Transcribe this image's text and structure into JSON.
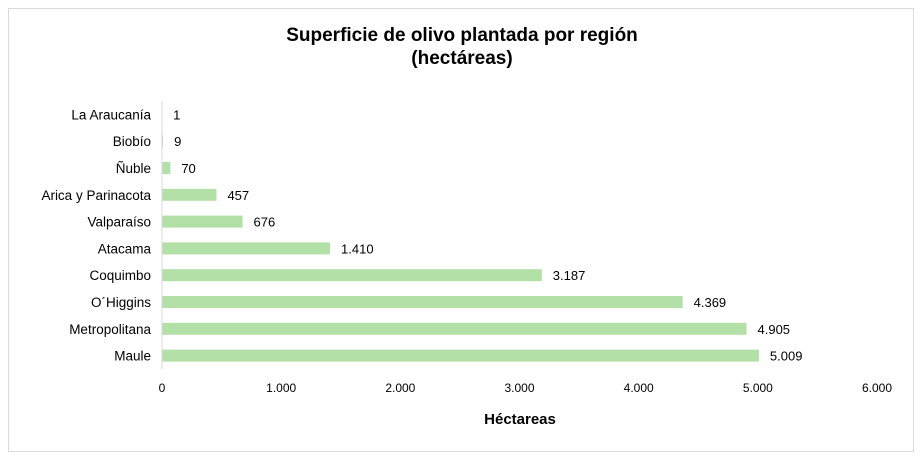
{
  "chart_data": {
    "type": "bar",
    "orientation": "horizontal",
    "title_lines": [
      "Superficie de olivo plantada por región",
      "(hectáreas)"
    ],
    "xlabel": "Héctareas",
    "ylabel": "",
    "categories": [
      "La Araucanía",
      "Biobío",
      "Ñuble",
      "Arica y Parinacota",
      "Valparaíso",
      "Atacama",
      "Coquimbo",
      "O´Higgins",
      "Metropolitana",
      "Maule"
    ],
    "values": [
      1,
      9,
      70,
      457,
      676,
      1410,
      3187,
      4369,
      4905,
      5009
    ],
    "data_labels": [
      "1",
      "9",
      "70",
      "457",
      "676",
      "1.410",
      "3.187",
      "4.369",
      "4.905",
      "5.009"
    ],
    "xlim": [
      0,
      6000
    ],
    "xticks": [
      0,
      1000,
      2000,
      3000,
      4000,
      5000,
      6000
    ],
    "xtick_labels": [
      "0",
      "1.000",
      "2.000",
      "3.000",
      "4.000",
      "5.000",
      "6.000"
    ],
    "grid": false,
    "legend": "none",
    "bar_color": "#b3e0a6"
  }
}
